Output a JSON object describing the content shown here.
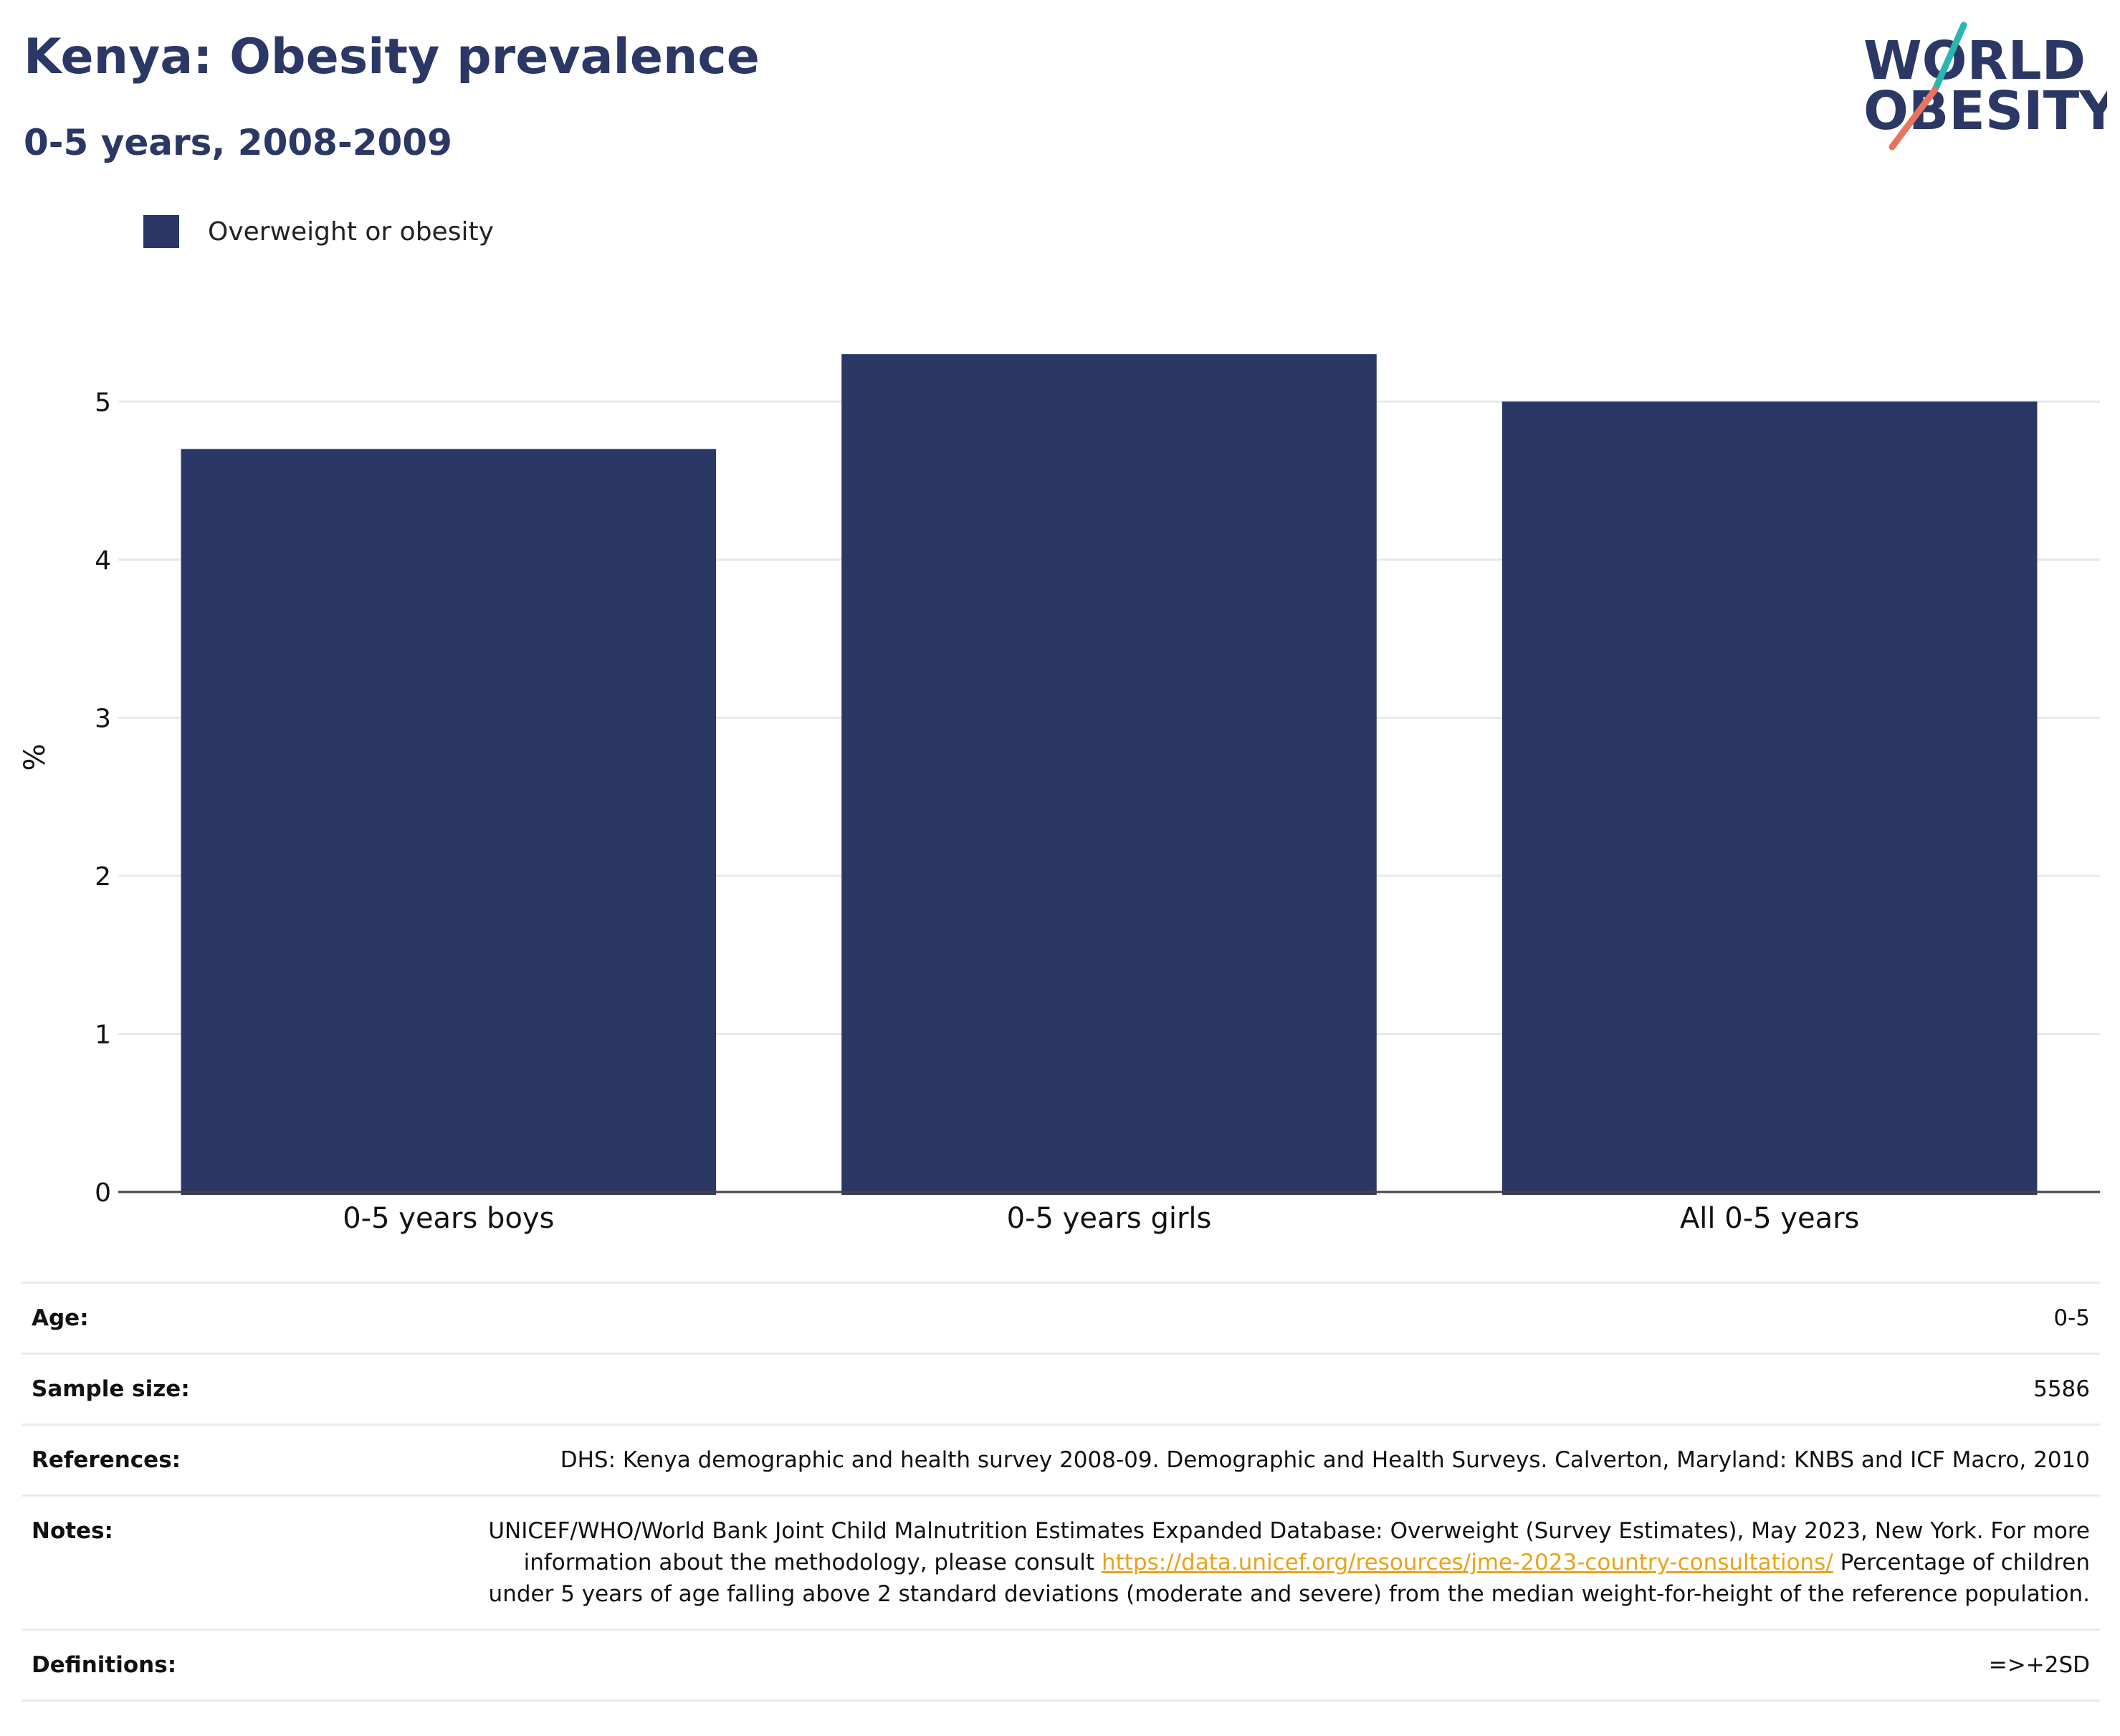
{
  "header": {
    "title": "Kenya: Obesity prevalence",
    "subtitle": "0-5 years, 2008-2009"
  },
  "logo": {
    "line1": "WORLD",
    "line2": "OBESITY",
    "colors": {
      "text": "#2b3764",
      "slash_top": "#2bb5b0",
      "slash_bottom": "#e8735f"
    }
  },
  "legend": {
    "items": [
      {
        "label": "Overweight or obesity",
        "color": "#2b3764"
      }
    ]
  },
  "chart_data": {
    "type": "bar",
    "title": "Kenya: Obesity prevalence",
    "subtitle": "0-5 years, 2008-2009",
    "categories": [
      "0-5 years boys",
      "0-5 years girls",
      "All 0-5 years"
    ],
    "series": [
      {
        "name": "Overweight or obesity",
        "values": [
          4.7,
          5.3,
          5.0
        ],
        "color": "#2b3764"
      }
    ],
    "xlabel": "",
    "ylabel": "%",
    "ylim": [
      0,
      5.5
    ],
    "yticks": [
      "0",
      "1",
      "2",
      "3",
      "4",
      "5"
    ],
    "grid": true,
    "legend_position": "top-left"
  },
  "info": {
    "rows": [
      {
        "key": "Age:",
        "value": "0-5"
      },
      {
        "key": "Sample size:",
        "value": "5586"
      },
      {
        "key": "References:",
        "value": "DHS: Kenya demographic and health survey 2008-09. Demographic and Health Surveys. Calverton, Maryland: KNBS and ICF Macro, 2010"
      },
      {
        "key": "Notes:",
        "value_before": "UNICEF/WHO/World Bank Joint Child Malnutrition Estimates Expanded Database: Overweight (Survey Estimates), May 2023, New York. For more information about the methodology, please consult ",
        "link": "https://data.unicef.org/resources/jme-2023-country-consultations/",
        "value_after": " Percentage of children under 5 years of age falling above 2 standard deviations (moderate and severe) from the median weight-for-height of the reference population."
      },
      {
        "key": "Definitions:",
        "value": "=>+2SD"
      }
    ]
  },
  "colors": {
    "accent": "#2b3764",
    "link": "#e8a31a",
    "grid": "#e8e8ee"
  }
}
